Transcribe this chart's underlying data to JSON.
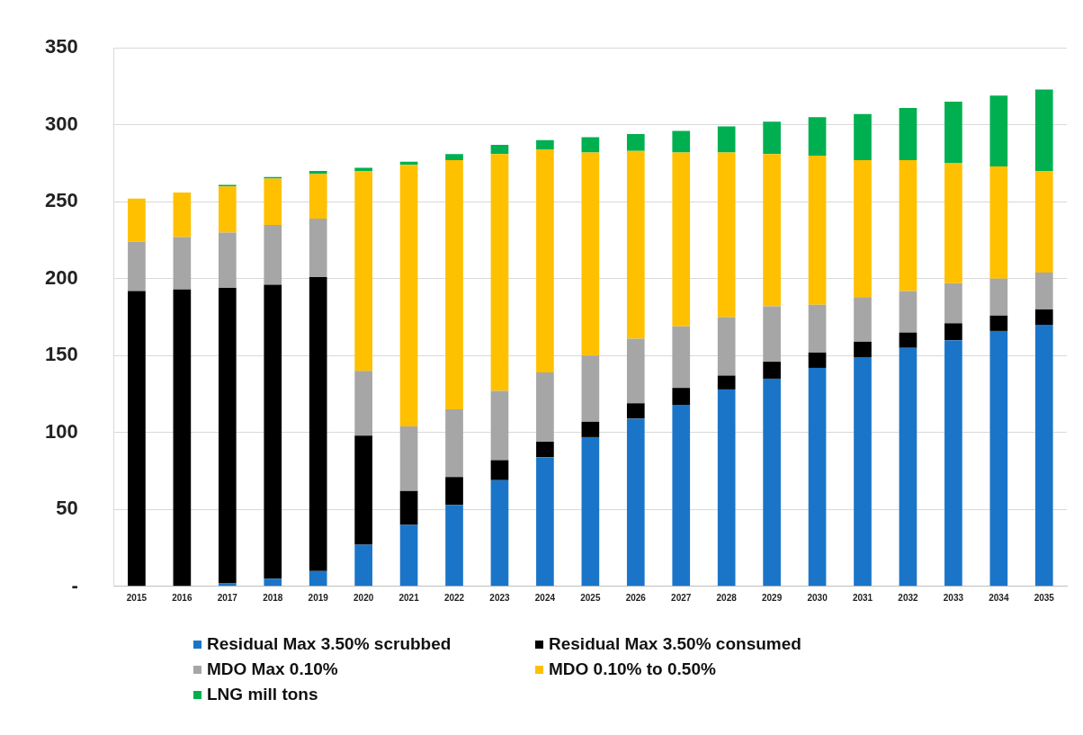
{
  "chart_data": {
    "type": "bar",
    "stacked": true,
    "categories": [
      "2015",
      "2016",
      "2017",
      "2018",
      "2019",
      "2020",
      "2021",
      "2022",
      "2023",
      "2024",
      "2025",
      "2026",
      "2027",
      "2028",
      "2029",
      "2030",
      "2031",
      "2032",
      "2033",
      "2034",
      "2035"
    ],
    "series": [
      {
        "name": "Residual Max 3.50% scrubbed",
        "color": "#1a75c8",
        "values": [
          0,
          0,
          2,
          5,
          10,
          27,
          40,
          53,
          69,
          84,
          97,
          109,
          118,
          128,
          135,
          142,
          149,
          155,
          160,
          166,
          170
        ]
      },
      {
        "name": "Residual Max 3.50% consumed",
        "color": "#000000",
        "values": [
          192,
          193,
          192,
          191,
          191,
          71,
          22,
          18,
          13,
          10,
          10,
          10,
          11,
          9,
          11,
          10,
          10,
          10,
          11,
          10,
          10
        ]
      },
      {
        "name": "MDO Max 0.10%",
        "color": "#a6a6a6",
        "values": [
          32,
          34,
          36,
          39,
          38,
          42,
          42,
          44,
          45,
          45,
          43,
          42,
          40,
          38,
          36,
          31,
          29,
          27,
          26,
          24,
          24
        ]
      },
      {
        "name": "MDO 0.10% to 0.50%",
        "color": "#ffc000",
        "values": [
          28,
          29,
          30,
          30,
          29,
          130,
          170,
          162,
          154,
          145,
          132,
          122,
          113,
          107,
          99,
          97,
          89,
          85,
          78,
          73,
          66
        ]
      },
      {
        "name": "LNG mill tons",
        "color": "#00b050",
        "values": [
          0,
          0,
          1,
          1,
          2,
          2,
          2,
          4,
          6,
          6,
          10,
          11,
          14,
          17,
          21,
          25,
          30,
          34,
          40,
          46,
          53
        ]
      }
    ],
    "ylim": [
      0,
      350
    ],
    "yticks": [
      {
        "value": 0,
        "label": "-"
      },
      50,
      100,
      150,
      200,
      250,
      300,
      350
    ],
    "grid": "y",
    "legend": "bottom"
  }
}
